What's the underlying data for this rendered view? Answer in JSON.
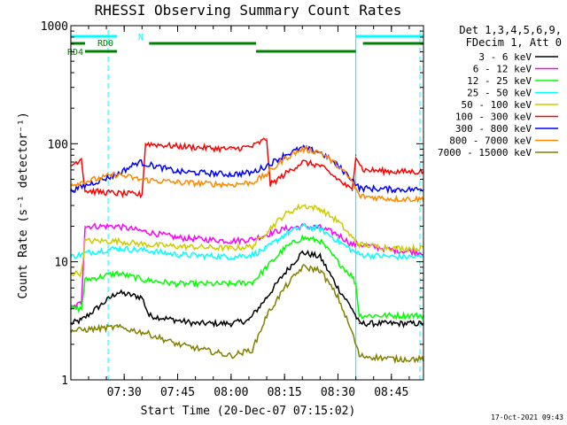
{
  "chart_data": {
    "type": "line",
    "title": "RHESSI Observing Summary Count Rates",
    "xlabel": "Start Time (20-Dec-07 07:15:02)",
    "ylabel": "Count Rate (s⁻¹ detector⁻¹)",
    "yscale": "log",
    "ylim": [
      1,
      1000
    ],
    "xlim": [
      "07:15:02",
      "08:54:00"
    ],
    "x_ticks": [
      "07:30",
      "07:45",
      "08:00",
      "08:15",
      "08:30",
      "08:45"
    ],
    "y_ticks": [
      "1",
      "10",
      "100",
      "1000"
    ],
    "grid": false,
    "legend_position": "right",
    "legend_header": [
      "Det 1,3,4,5,6,9,",
      "FDecim 1, Att 0"
    ],
    "timestamp": "17-Oct-2021 09:43",
    "markers": {
      "N_label": "N",
      "RD0_label": "RD0",
      "RD4_label": "RD4",
      "color_cyan": "#00ffff",
      "color_green": "#008000"
    },
    "series": [
      {
        "name": "3 - 6 keV",
        "color": "#000000",
        "points": [
          [
            "07:15",
            3.0
          ],
          [
            "07:18",
            3.2
          ],
          [
            "07:28",
            5.5
          ],
          [
            "07:35",
            5.0
          ],
          [
            "07:37",
            3.5
          ],
          [
            "07:50",
            3.0
          ],
          [
            "08:00",
            3.0
          ],
          [
            "08:05",
            3.2
          ],
          [
            "08:10",
            5.0
          ],
          [
            "08:15",
            8.0
          ],
          [
            "08:20",
            12.0
          ],
          [
            "08:25",
            11.0
          ],
          [
            "08:30",
            6.0
          ],
          [
            "08:34",
            4.0
          ],
          [
            "08:36",
            3.0
          ],
          [
            "08:46",
            3.0
          ],
          [
            "08:54",
            3.0
          ]
        ]
      },
      {
        "name": "6 - 12 keV",
        "color": "#ff00ff",
        "points": [
          [
            "07:15",
            4.0
          ],
          [
            "07:18",
            4.5
          ],
          [
            "07:19",
            20.0
          ],
          [
            "07:28",
            20.0
          ],
          [
            "07:36",
            18.0
          ],
          [
            "07:45",
            16.0
          ],
          [
            "08:00",
            15.0
          ],
          [
            "08:06",
            15.5
          ],
          [
            "08:10",
            17.0
          ],
          [
            "08:15",
            19.0
          ],
          [
            "08:20",
            20.0
          ],
          [
            "08:25",
            19.5
          ],
          [
            "08:30",
            17.0
          ],
          [
            "08:34",
            14.0
          ],
          [
            "08:36",
            14.0
          ],
          [
            "08:46",
            12.5
          ],
          [
            "08:54",
            12.0
          ]
        ]
      },
      {
        "name": "12 - 25 keV",
        "color": "#00ff00",
        "points": [
          [
            "07:15",
            4.0
          ],
          [
            "07:18",
            4.0
          ],
          [
            "07:19",
            7.0
          ],
          [
            "07:28",
            8.0
          ],
          [
            "07:36",
            7.0
          ],
          [
            "07:45",
            6.5
          ],
          [
            "08:00",
            6.5
          ],
          [
            "08:06",
            6.7
          ],
          [
            "08:10",
            9.0
          ],
          [
            "08:15",
            13.0
          ],
          [
            "08:20",
            16.0
          ],
          [
            "08:25",
            15.0
          ],
          [
            "08:30",
            10.0
          ],
          [
            "08:34",
            7.5
          ],
          [
            "08:35",
            6.5
          ],
          [
            "08:36",
            3.5
          ],
          [
            "08:46",
            3.5
          ],
          [
            "08:54",
            3.5
          ]
        ]
      },
      {
        "name": "25 - 50 keV",
        "color": "#00ffff",
        "points": [
          [
            "07:15",
            11.0
          ],
          [
            "07:20",
            12.0
          ],
          [
            "07:28",
            13.0
          ],
          [
            "07:36",
            12.5
          ],
          [
            "07:45",
            11.5
          ],
          [
            "08:00",
            11.0
          ],
          [
            "08:06",
            11.5
          ],
          [
            "08:10",
            13.0
          ],
          [
            "08:15",
            17.0
          ],
          [
            "08:20",
            20.0
          ],
          [
            "08:25",
            19.0
          ],
          [
            "08:30",
            15.0
          ],
          [
            "08:34",
            12.5
          ],
          [
            "08:36",
            11.5
          ],
          [
            "08:46",
            11.0
          ],
          [
            "08:54",
            11.0
          ]
        ]
      },
      {
        "name": "50 - 100 keV",
        "color": "#cccc00",
        "points": [
          [
            "07:15",
            8.0
          ],
          [
            "07:18",
            8.0
          ],
          [
            "07:19",
            15.0
          ],
          [
            "07:28",
            15.0
          ],
          [
            "07:36",
            14.0
          ],
          [
            "07:45",
            13.5
          ],
          [
            "08:00",
            13.0
          ],
          [
            "08:06",
            13.5
          ],
          [
            "08:10",
            18.0
          ],
          [
            "08:15",
            25.0
          ],
          [
            "08:20",
            30.0
          ],
          [
            "08:25",
            28.0
          ],
          [
            "08:30",
            22.0
          ],
          [
            "08:34",
            16.0
          ],
          [
            "08:36",
            14.0
          ],
          [
            "08:46",
            13.0
          ],
          [
            "08:54",
            13.0
          ]
        ]
      },
      {
        "name": "100 - 300 keV",
        "color": "#ff0000",
        "points": [
          [
            "07:15",
            65.0
          ],
          [
            "07:18",
            75.0
          ],
          [
            "07:19",
            40.0
          ],
          [
            "07:28",
            38.0
          ],
          [
            "07:35",
            37.0
          ],
          [
            "07:36",
            100.0
          ],
          [
            "07:45",
            95.0
          ],
          [
            "08:00",
            90.0
          ],
          [
            "08:06",
            95.0
          ],
          [
            "08:10",
            110.0
          ],
          [
            "08:11",
            45.0
          ],
          [
            "08:15",
            55.0
          ],
          [
            "08:20",
            70.0
          ],
          [
            "08:25",
            65.0
          ],
          [
            "08:30",
            50.0
          ],
          [
            "08:34",
            40.0
          ],
          [
            "08:35",
            80.0
          ],
          [
            "08:37",
            60.0
          ],
          [
            "08:46",
            58.0
          ],
          [
            "08:54",
            58.0
          ]
        ]
      },
      {
        "name": "300 - 800 keV",
        "color": "#0000ff",
        "points": [
          [
            "07:15",
            40.0
          ],
          [
            "07:28",
            55.0
          ],
          [
            "07:34",
            70.0
          ],
          [
            "07:45",
            58.0
          ],
          [
            "08:00",
            55.0
          ],
          [
            "08:06",
            57.0
          ],
          [
            "08:10",
            65.0
          ],
          [
            "08:15",
            80.0
          ],
          [
            "08:20",
            92.0
          ],
          [
            "08:25",
            85.0
          ],
          [
            "08:30",
            65.0
          ],
          [
            "08:34",
            50.0
          ],
          [
            "08:36",
            42.0
          ],
          [
            "08:46",
            41.0
          ],
          [
            "08:54",
            41.0
          ]
        ]
      },
      {
        "name": "800 - 7000 keV",
        "color": "#ff8800",
        "points": [
          [
            "07:15",
            45.0
          ],
          [
            "07:28",
            55.0
          ],
          [
            "07:34",
            50.0
          ],
          [
            "07:45",
            47.0
          ],
          [
            "08:00",
            45.0
          ],
          [
            "08:06",
            47.0
          ],
          [
            "08:10",
            55.0
          ],
          [
            "08:15",
            75.0
          ],
          [
            "08:20",
            90.0
          ],
          [
            "08:25",
            85.0
          ],
          [
            "08:30",
            65.0
          ],
          [
            "08:34",
            48.0
          ],
          [
            "08:36",
            36.0
          ],
          [
            "08:46",
            34.0
          ],
          [
            "08:54",
            34.0
          ]
        ]
      },
      {
        "name": "7000 - 15000 keV",
        "color": "#808000",
        "points": [
          [
            "07:15",
            2.6
          ],
          [
            "07:28",
            2.8
          ],
          [
            "07:36",
            2.5
          ],
          [
            "07:45",
            2.0
          ],
          [
            "08:00",
            1.6
          ],
          [
            "08:06",
            1.8
          ],
          [
            "08:10",
            3.5
          ],
          [
            "08:15",
            6.0
          ],
          [
            "08:20",
            9.0
          ],
          [
            "08:25",
            8.5
          ],
          [
            "08:30",
            5.0
          ],
          [
            "08:34",
            2.5
          ],
          [
            "08:36",
            1.6
          ],
          [
            "08:46",
            1.5
          ],
          [
            "08:54",
            1.5
          ]
        ]
      }
    ]
  }
}
